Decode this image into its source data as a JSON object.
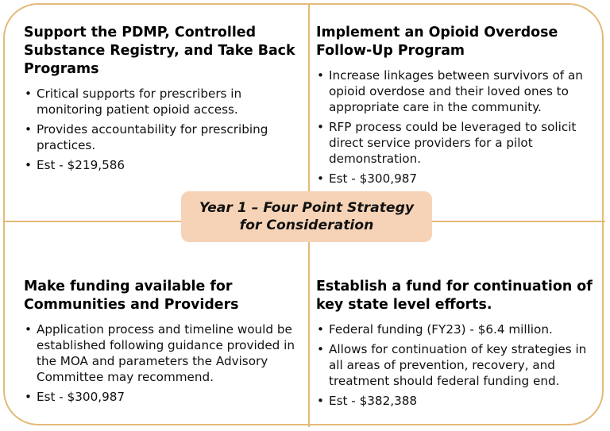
{
  "colors": {
    "border": "#e3b978",
    "center_fill": "#f6d3b6",
    "text": "#111111"
  },
  "center": {
    "title": "Year 1 – Four Point Strategy for Consideration"
  },
  "quadrants": {
    "top_left": {
      "title": "Support the PDMP, Controlled Substance Registry, and Take Back Programs",
      "bullets": [
        "Critical supports for prescribers in monitoring patient opioid access.",
        "Provides accountability for prescribing practices.",
        "Est - $219,586"
      ]
    },
    "top_right": {
      "title": "Implement an Opioid Overdose Follow-Up Program",
      "bullets": [
        "Increase linkages between survivors of an opioid overdose and their loved ones to appropriate care in the community.",
        "RFP process could be leveraged to solicit direct service providers for a pilot demonstration.",
        "Est - $300,987"
      ]
    },
    "bottom_left": {
      "title": "Make funding available for Communities and Providers",
      "bullets": [
        "Application process and timeline would be established following guidance provided in the MOA and parameters the Advisory Committee may recommend.",
        "Est - $300,987"
      ]
    },
    "bottom_right": {
      "title": "Establish a fund for continuation of key state level efforts.",
      "bullets": [
        "Federal funding (FY23) - $6.4 million.",
        "Allows for continuation of key strategies in all areas of prevention, recovery, and treatment should federal funding end.",
        "Est - $382,388"
      ]
    }
  }
}
